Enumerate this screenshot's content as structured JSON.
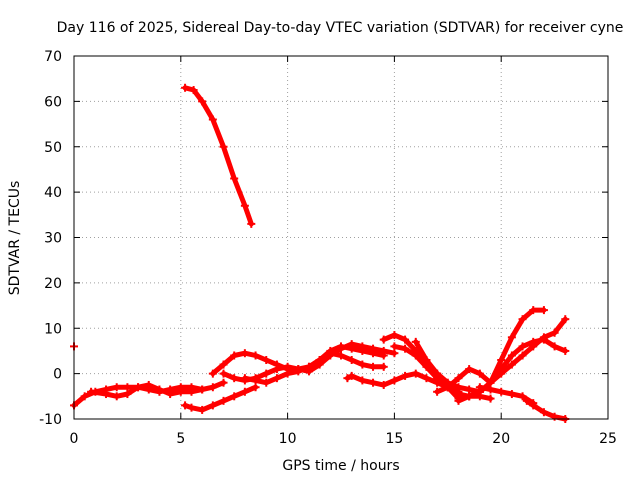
{
  "chart_data": {
    "type": "scatter",
    "title": "Day 116 of 2025, Sidereal Day-to-day VTEC variation (SDTVAR) for receiver cyne",
    "xlabel": "GPS time / hours",
    "ylabel": "SDTVAR / TECUs",
    "xlim": [
      0,
      25
    ],
    "ylim": [
      -10,
      70
    ],
    "xticks": [
      0,
      5,
      10,
      15,
      20,
      25
    ],
    "yticks": [
      -10,
      0,
      10,
      20,
      30,
      40,
      50,
      60,
      70
    ],
    "grid": true,
    "marker": "+",
    "color": "#ff0000",
    "series": [
      {
        "name": "arc-high",
        "x": [
          5.2,
          5.6,
          6.0,
          6.5,
          7.0,
          7.5,
          8.0,
          8.3
        ],
        "y": [
          63,
          62.5,
          60,
          56,
          50,
          43,
          37,
          33
        ]
      },
      {
        "name": "arc-early-a",
        "x": [
          0.0,
          0.5,
          1.0,
          1.5,
          2.0,
          2.5,
          3.0,
          3.5,
          4.0,
          4.5,
          5.0,
          5.5,
          6.0,
          6.5,
          7.0
        ],
        "y": [
          -7,
          -5,
          -4,
          -3.5,
          -3,
          -3,
          -3,
          -3.5,
          -4,
          -3.5,
          -3,
          -3,
          -3.5,
          -3,
          -2
        ]
      },
      {
        "name": "arc-early-b",
        "x": [
          0.8,
          1.5,
          2.0,
          2.5,
          3.0,
          3.5,
          4.0,
          4.5,
          5.0,
          5.5,
          6.0
        ],
        "y": [
          -4,
          -4.5,
          -5,
          -4.5,
          -3,
          -2.5,
          -3.5,
          -4.5,
          -4,
          -4,
          -3.5
        ]
      },
      {
        "name": "arc-low",
        "x": [
          5.2,
          5.5,
          6.0,
          6.5,
          7.0,
          7.5,
          8.0,
          8.5
        ],
        "y": [
          -7,
          -7.5,
          -8,
          -7,
          -6,
          -5,
          -4,
          -3
        ]
      },
      {
        "name": "arc-mid-a",
        "x": [
          6.5,
          7.0,
          7.5,
          8.0,
          8.5,
          9.0,
          9.5,
          10.0,
          10.5,
          11.0,
          11.5,
          12.0,
          12.5,
          13.0,
          13.5,
          14.0,
          14.5
        ],
        "y": [
          0,
          2,
          4,
          4.5,
          4,
          3,
          2,
          1,
          1,
          1.5,
          3,
          5,
          6,
          5.5,
          5,
          4.5,
          4
        ]
      },
      {
        "name": "arc-mid-b",
        "x": [
          7.0,
          7.5,
          8.0,
          8.5,
          9.0,
          9.5,
          10.0,
          10.5,
          11.0,
          11.5,
          12.0,
          12.5,
          13.0,
          13.5,
          14.0,
          14.5,
          15.0
        ],
        "y": [
          0,
          -1,
          -1.5,
          -1,
          0,
          1,
          1.5,
          1,
          0.5,
          2,
          4,
          5.5,
          6.5,
          6,
          5.5,
          5,
          4.5
        ]
      },
      {
        "name": "arc-mid-c",
        "x": [
          8.0,
          8.5,
          9.0,
          9.5,
          10.0,
          10.5,
          11.0,
          11.5,
          12.0,
          12.5,
          13.0,
          13.5,
          14.0,
          14.5
        ],
        "y": [
          -1,
          -1.5,
          -2,
          -1,
          0,
          0.5,
          1.5,
          3,
          4.5,
          4,
          3,
          2,
          1.5,
          1.5
        ]
      },
      {
        "name": "arc-mid-d",
        "x": [
          12.8,
          13.0,
          13.5,
          14.0,
          14.5,
          15.0,
          15.5,
          16.0,
          16.5,
          17.0,
          17.5,
          18.0
        ],
        "y": [
          -1,
          -0.5,
          -1.5,
          -2,
          -2.5,
          -1.5,
          -0.5,
          0,
          -1,
          -2,
          -3,
          -4
        ]
      },
      {
        "name": "arc-late-a",
        "x": [
          14.5,
          15.0,
          15.5,
          16.0,
          16.5,
          17.0,
          17.5,
          18.0,
          18.5,
          19.0
        ],
        "y": [
          7.5,
          8.5,
          7.5,
          5,
          2,
          0,
          -2,
          -3,
          -3.5,
          -4
        ]
      },
      {
        "name": "arc-late-b",
        "x": [
          15.0,
          15.5,
          16.0,
          16.5,
          17.0,
          17.5,
          18.0,
          18.5,
          19.0,
          19.5
        ],
        "y": [
          6,
          5.5,
          4,
          1.5,
          -1,
          -3,
          -4.5,
          -5,
          -5,
          -5.5
        ]
      },
      {
        "name": "arc-late-c",
        "x": [
          16.0,
          16.5,
          17.0,
          17.5,
          18.0,
          18.5,
          19.0,
          19.5,
          20.0,
          20.5,
          21.0,
          21.5,
          22.0,
          22.5,
          23.0
        ],
        "y": [
          7,
          3,
          0,
          -3,
          -5.5,
          -5,
          -4,
          -2,
          1,
          4,
          6,
          7,
          7.5,
          6,
          5
        ]
      },
      {
        "name": "arc-late-d",
        "x": [
          17.0,
          17.5,
          18.0,
          18.5,
          19.0,
          19.5,
          20.0,
          20.5,
          21.0,
          21.5,
          22.0
        ],
        "y": [
          -4,
          -3,
          -1,
          1,
          0,
          -2,
          3,
          8,
          12,
          14,
          14
        ]
      },
      {
        "name": "arc-late-e",
        "x": [
          18.0,
          18.5,
          19.0,
          19.5,
          20.0,
          20.5,
          21.0,
          21.5,
          22.0,
          22.5,
          23.0
        ],
        "y": [
          -6,
          -5,
          -4,
          -2,
          0,
          2,
          4,
          6,
          8,
          9,
          12
        ]
      },
      {
        "name": "arc-late-f",
        "x": [
          19.0,
          19.5,
          20.0,
          20.5,
          21.0,
          21.5
        ],
        "y": [
          -3,
          -3.5,
          -4,
          -4.5,
          -5,
          -6.5
        ]
      },
      {
        "name": "arc-tail",
        "x": [
          21.2,
          21.5,
          22.0,
          22.5,
          23.0
        ],
        "y": [
          -6,
          -7,
          -8.5,
          -9.5,
          -10
        ]
      },
      {
        "name": "isolated",
        "x": [
          0.0
        ],
        "y": [
          6
        ]
      }
    ]
  }
}
